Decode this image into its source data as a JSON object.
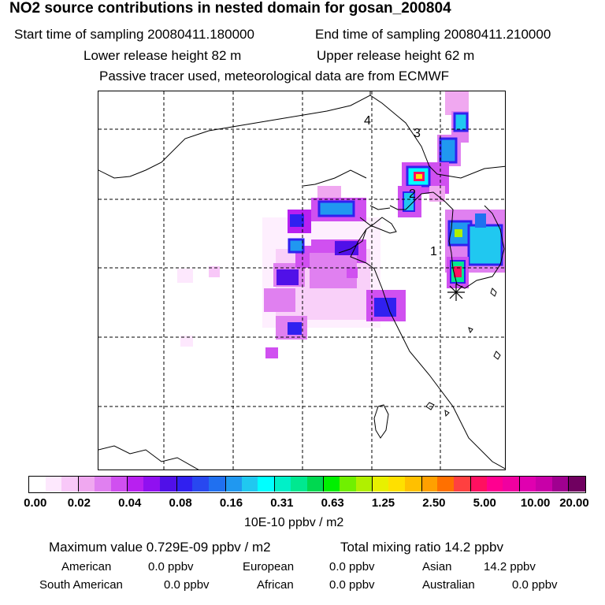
{
  "header": {
    "title": "NO2 source contributions in nested domain for gosan_200804",
    "start_label": "Start time of sampling 20080411.180000",
    "end_label": "End time of sampling 20080411.210000",
    "lower_label": "Lower release height   82 m",
    "upper_label": "Upper release height   62 m",
    "tracer_note": "Passive tracer used, meteorological data are from ECMWF"
  },
  "map": {
    "labels": [
      "4",
      "3",
      "2",
      "1"
    ],
    "receptor_symbol": "*"
  },
  "colorbar": {
    "colors": [
      "#ffffff",
      "#fde8fd",
      "#f8c8f8",
      "#f0a8f0",
      "#e080f0",
      "#d050f0",
      "#b820f0",
      "#9010f0",
      "#5010e8",
      "#3020f0",
      "#2848f0",
      "#2070f0",
      "#2098f0",
      "#20c8f0",
      "#00ffff",
      "#00f0c8",
      "#00e890",
      "#00d850",
      "#00f000",
      "#70f000",
      "#b0f000",
      "#e8f000",
      "#ffe000",
      "#ffc000",
      "#ffa000",
      "#ff7000",
      "#ff4040",
      "#ff1060",
      "#ff0090",
      "#f000a0",
      "#e000b0",
      "#c800a8",
      "#a00090",
      "#700060"
    ],
    "tick_labels": [
      "0.00",
      "0.02",
      "0.04",
      "0.08",
      "0.16",
      "0.31",
      "0.63",
      "1.25",
      "2.50",
      "5.00",
      "10.00",
      "20.00"
    ],
    "units": "10E-10 ppbv / m2"
  },
  "stats": {
    "max_value": "Maximum value  0.729E-09 ppbv / m2",
    "total_mixing": "Total mixing ratio        14.2 ppbv",
    "contributions": [
      {
        "name": "American",
        "value": "0.0 ppbv"
      },
      {
        "name": "European",
        "value": "0.0 ppbv"
      },
      {
        "name": "Asian",
        "value": "14.2 ppbv"
      },
      {
        "name": "South American",
        "value": "0.0 ppbv"
      },
      {
        "name": "African",
        "value": "0.0 ppbv"
      },
      {
        "name": "Australian",
        "value": "0.0 ppbv"
      }
    ]
  }
}
